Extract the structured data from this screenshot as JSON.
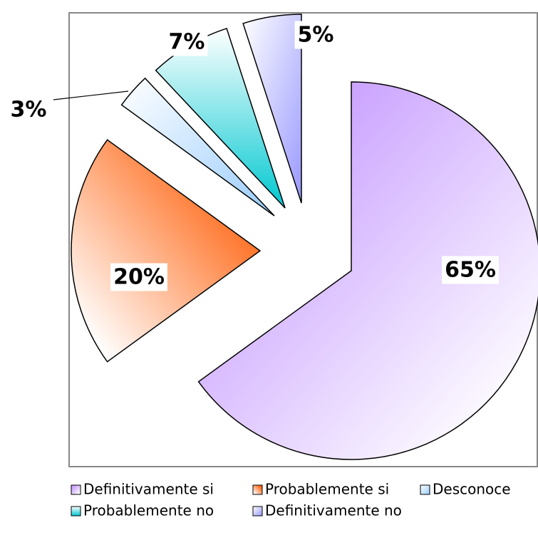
{
  "chart_data": {
    "type": "pie",
    "categories": [
      "Definitivamente si",
      "Probablemente si",
      "Desconoce",
      "Probablemente no",
      "Definitivamente no"
    ],
    "values": [
      65,
      20,
      3,
      7,
      5
    ],
    "value_labels": [
      "65%",
      "20%",
      "3%",
      "7%",
      "5%"
    ],
    "colors": [
      "#c9a0ff",
      "#ff6a1a",
      "#99ccff",
      "#00c8d0",
      "#9999ff"
    ]
  }
}
